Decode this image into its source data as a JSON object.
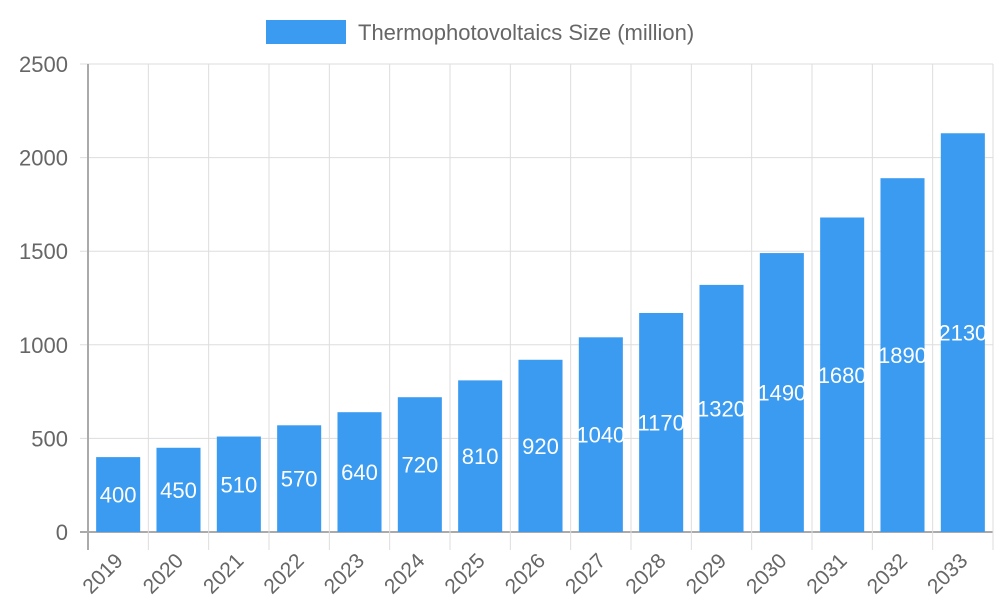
{
  "chart_data": {
    "type": "bar",
    "title": "",
    "xlabel": "",
    "ylabel": "",
    "categories": [
      "2019",
      "2020",
      "2021",
      "2022",
      "2023",
      "2024",
      "2025",
      "2026",
      "2027",
      "2028",
      "2029",
      "2030",
      "2031",
      "2032",
      "2033"
    ],
    "series": [
      {
        "name": "Thermophotovoltaics Size (million)",
        "values": [
          400,
          450,
          510,
          570,
          640,
          720,
          810,
          920,
          1040,
          1170,
          1320,
          1490,
          1680,
          1890,
          2130
        ],
        "color": "#3a9bf0"
      }
    ],
    "ylim": [
      0,
      2500
    ],
    "yticks": [
      0,
      500,
      1000,
      1500,
      2000,
      2500
    ],
    "grid": true,
    "legend_position": "top",
    "data_labels": true
  }
}
